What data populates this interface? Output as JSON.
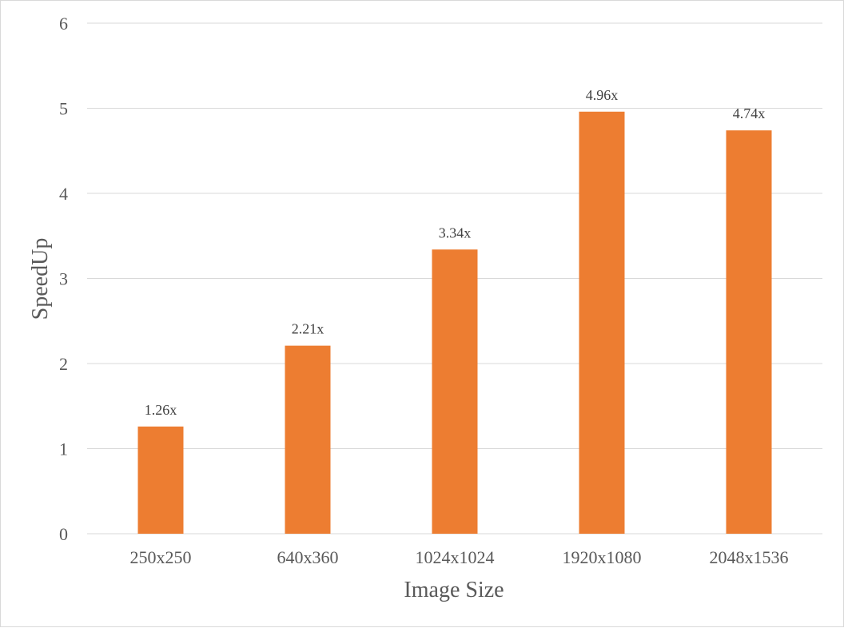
{
  "chart_data": {
    "type": "bar",
    "categories": [
      "250x250",
      "640x360",
      "1024x1024",
      "1920x1080",
      "2048x1536"
    ],
    "values": [
      1.26,
      2.21,
      3.34,
      4.96,
      4.74
    ],
    "data_labels": [
      "1.26x",
      "2.21x",
      "3.34x",
      "4.96x",
      "4.74x"
    ],
    "title": "",
    "xlabel": "Image Size",
    "ylabel": "SpeedUp",
    "ylim": [
      0,
      6
    ],
    "yticks": [
      0,
      1,
      2,
      3,
      4,
      5,
      6
    ],
    "grid": true,
    "legend": "none",
    "bar_color": "#ED7D31",
    "grid_color": "#d9d9d9"
  }
}
